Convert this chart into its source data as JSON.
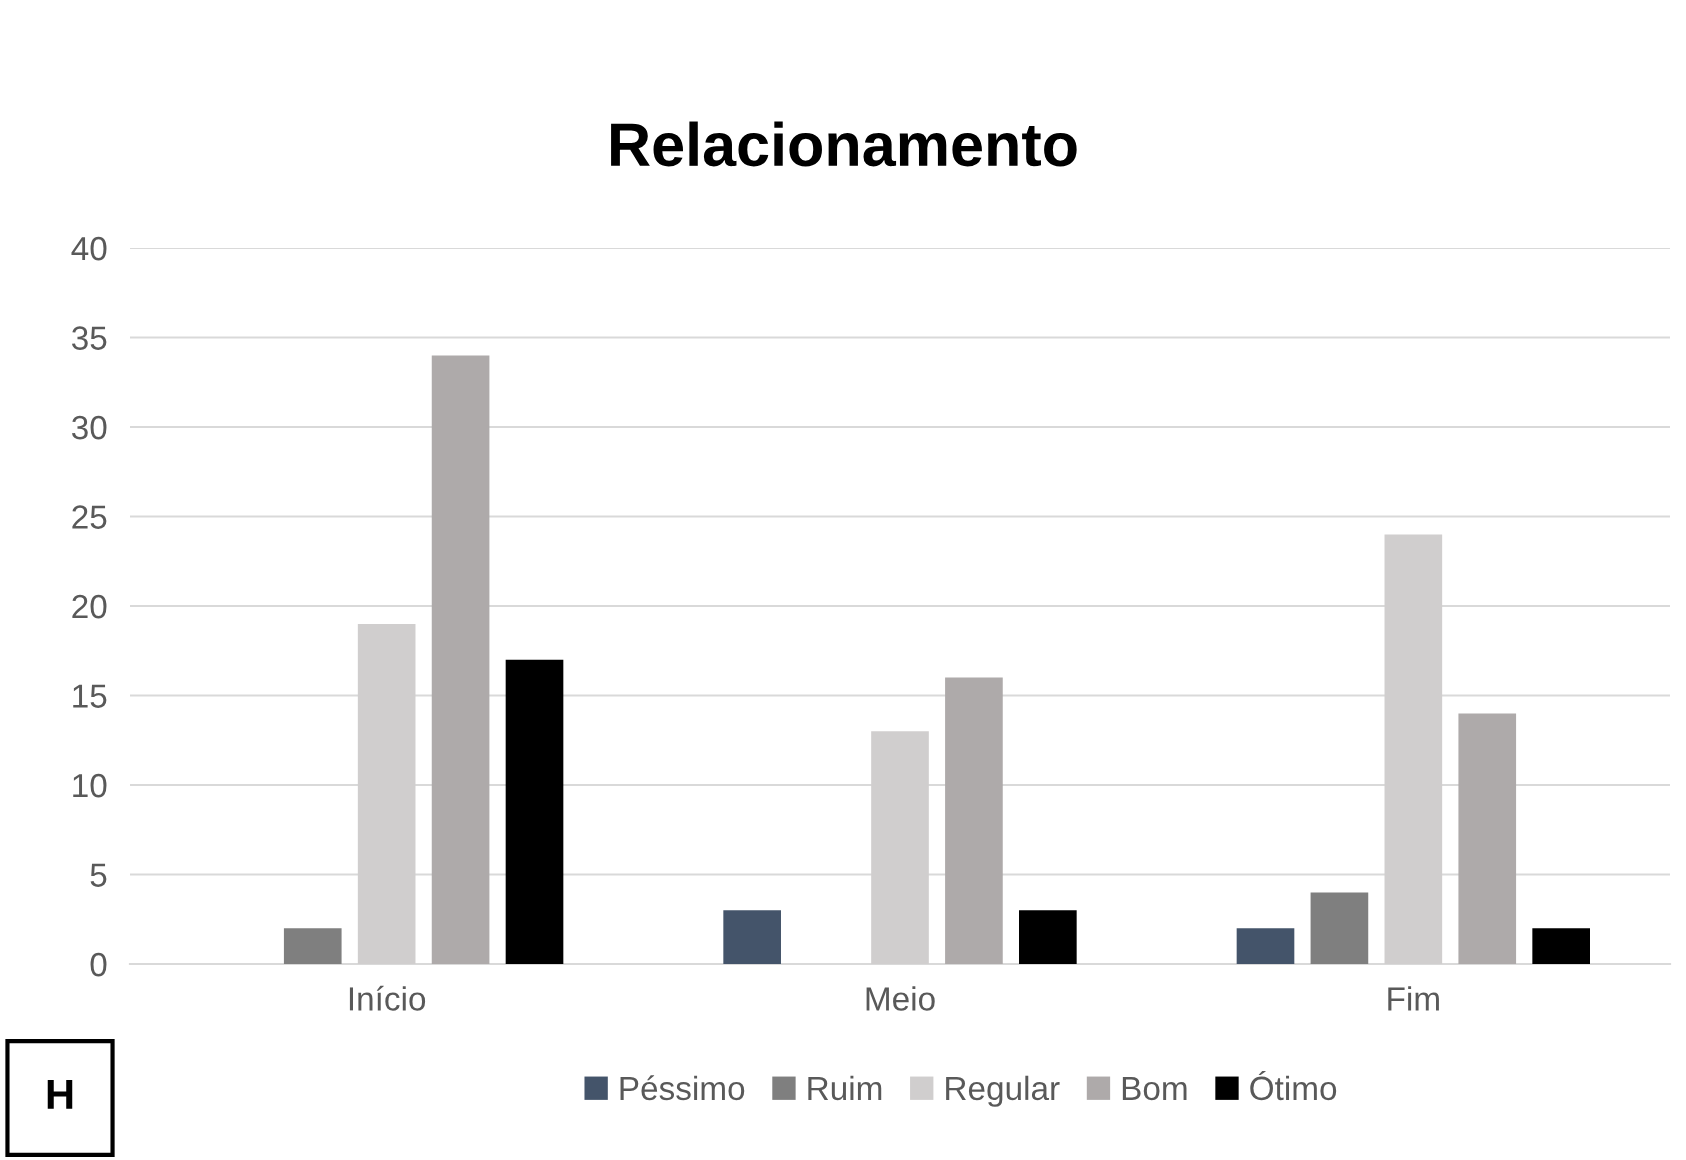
{
  "chart_data": {
    "type": "bar",
    "title": "Relacionamento",
    "categories": [
      "Início",
      "Meio",
      "Fim"
    ],
    "series": [
      {
        "name": "Péssimo",
        "color": "#44546a",
        "values": [
          0,
          3,
          2
        ]
      },
      {
        "name": "Ruim",
        "color": "#7f7f7f",
        "values": [
          2,
          0,
          4
        ]
      },
      {
        "name": "Regular",
        "color": "#d0cece",
        "values": [
          19,
          13,
          24
        ]
      },
      {
        "name": "Bom",
        "color": "#aeaaaa",
        "values": [
          34,
          16,
          14
        ]
      },
      {
        "name": "Ótimo",
        "color": "#000000",
        "values": [
          17,
          3,
          2
        ]
      }
    ],
    "ylim": [
      0,
      40
    ],
    "yticks": [
      0,
      5,
      10,
      15,
      20,
      25,
      30,
      35,
      40
    ],
    "grid": "y",
    "legend": "bottom",
    "annotations": [
      "H"
    ]
  }
}
